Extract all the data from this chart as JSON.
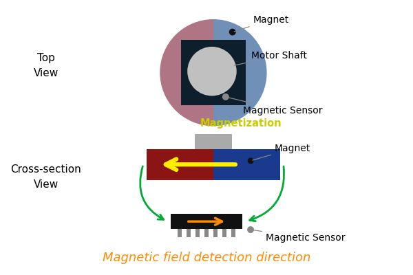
{
  "bg_color": "#ffffff",
  "title_text": "Magnetic field detection direction",
  "title_color": "#ff8c00",
  "title_fontsize": 13,
  "top_view_label": "Top\nView",
  "cross_section_label": "Cross-section\nView",
  "label_fontsize": 11,
  "magnet_label": "Magnet",
  "motor_shaft_label": "Motor Shaft",
  "magnetic_sensor_label_top": "Magnetic Sensor",
  "magnetization_label": "Magnetization",
  "magnet_label_cross": "Magnet",
  "magnetic_sensor_label_cross": "Magnetic Sensor",
  "ellipse_left_color": "#b07585",
  "ellipse_right_color": "#7090b8",
  "dark_square_color": "#0d1f2d",
  "inner_circle_color": "#c0c0c0",
  "cross_left_color": "#8b1515",
  "cross_right_color": "#1a3a90",
  "yellow_arrow_color": "#ffee00",
  "sensor_color": "#111111",
  "sensor_pin_color": "#888888",
  "sensor_arrow_color": "#ff8c00",
  "connector_color": "#aaaaaa",
  "green_arrow_color": "#00aa33",
  "annotation_line_color": "#888888",
  "dot_black": "#111111",
  "dot_gray": "#888888"
}
